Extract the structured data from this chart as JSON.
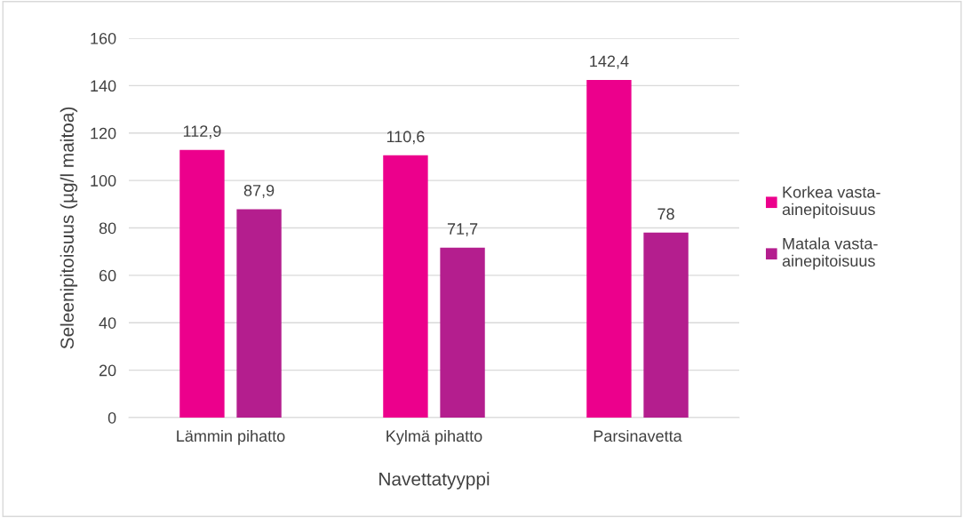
{
  "chart_data": {
    "type": "bar",
    "xlabel": "Navettatyyppi",
    "ylabel": "Seleenipitoisuus (µg/l maitoa)",
    "categories": [
      "Lämmin pihatto",
      "Kylmä pihatto",
      "Parsinavetta"
    ],
    "series": [
      {
        "name": "Korkea vasta-\nainepitoisuus",
        "color": "#ec008c",
        "values": [
          112.9,
          110.6,
          142.4
        ],
        "value_labels": [
          "112,9",
          "110,6",
          "142,4"
        ]
      },
      {
        "name": "Matala vasta-\nainepitoisuus",
        "color": "#b41e8e",
        "values": [
          87.9,
          71.7,
          78
        ],
        "value_labels": [
          "87,9",
          "71,7",
          "78"
        ]
      }
    ],
    "ylim": [
      0,
      160
    ],
    "yticks": [
      0,
      20,
      40,
      60,
      80,
      100,
      120,
      140,
      160
    ],
    "grid": "y",
    "legend": "right"
  }
}
